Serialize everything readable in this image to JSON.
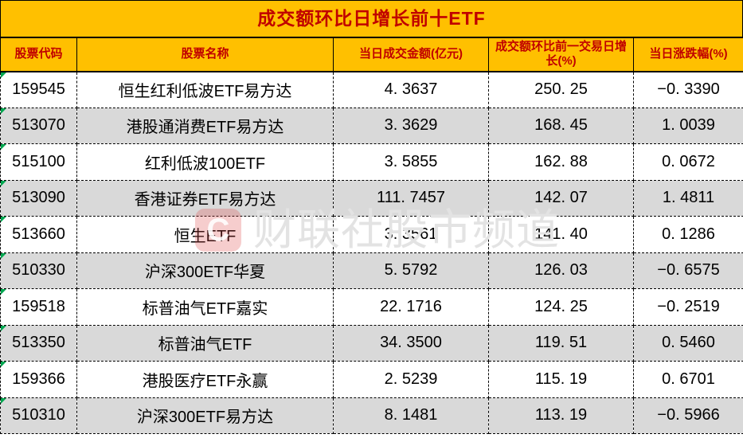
{
  "title": "成交额环比日增长前十ETF",
  "colors": {
    "header_bg": "#FFC000",
    "header_text": "#C00000",
    "row_bg": "#FFFFFF",
    "row_alt_bg": "#D9D9D9",
    "grid": "#000000",
    "cell_text": "#000000",
    "indicator_green": "#00A650"
  },
  "table": {
    "columns": [
      {
        "label": "股票代码"
      },
      {
        "label": "股票名称"
      },
      {
        "label": "当日成交金额(亿元)"
      },
      {
        "label": "成交额环比前一交易日增长(%)"
      },
      {
        "label": "当日涨跌幅(%)"
      }
    ],
    "rows": [
      [
        "159545",
        "恒生红利低波ETF易方达",
        "4. 3637",
        "250. 25",
        "−0. 3390"
      ],
      [
        "513070",
        "港股通消费ETF易方达",
        "3. 3629",
        "168. 45",
        "1. 0039"
      ],
      [
        "515100",
        "红利低波100ETF",
        "3. 5855",
        "162. 88",
        "0. 0672"
      ],
      [
        "513090",
        "香港证券ETF易方达",
        "111. 7457",
        "142. 07",
        "1. 4811"
      ],
      [
        "513660",
        "恒生ETF",
        "3. 3561",
        "141. 40",
        "0. 1286"
      ],
      [
        "510330",
        "沪深300ETF华夏",
        "5. 5792",
        "126. 03",
        "−0. 6575"
      ],
      [
        "159518",
        "标普油气ETF嘉实",
        "22. 1716",
        "124. 25",
        "−0. 2519"
      ],
      [
        "513350",
        "标普油气ETF",
        "34. 3500",
        "119. 51",
        "0. 5460"
      ],
      [
        "159366",
        "港股医疗ETF永赢",
        "2. 5239",
        "115. 19",
        "0. 6701"
      ],
      [
        "510310",
        "沪深300ETF易方达",
        "8. 1481",
        "113. 19",
        "−0. 5966"
      ]
    ]
  },
  "chart_data": {
    "type": "table",
    "title": "成交额环比日增长前十ETF",
    "columns": [
      "股票代码",
      "股票名称",
      "当日成交金额(亿元)",
      "成交额环比前一交易日增长(%)",
      "当日涨跌幅(%)"
    ],
    "rows": [
      [
        "159545",
        "恒生红利低波ETF易方达",
        4.3637,
        250.25,
        -0.339
      ],
      [
        "513070",
        "港股通消费ETF易方达",
        3.3629,
        168.45,
        1.0039
      ],
      [
        "515100",
        "红利低波100ETF",
        3.5855,
        162.88,
        0.0672
      ],
      [
        "513090",
        "香港证券ETF易方达",
        111.7457,
        142.07,
        1.4811
      ],
      [
        "513660",
        "恒生ETF",
        3.3561,
        141.4,
        0.1286
      ],
      [
        "510330",
        "沪深300ETF华夏",
        5.5792,
        126.03,
        -0.6575
      ],
      [
        "159518",
        "标普油气ETF嘉实",
        22.1716,
        124.25,
        -0.2519
      ],
      [
        "513350",
        "标普油气ETF",
        34.35,
        119.51,
        0.546
      ],
      [
        "159366",
        "港股医疗ETF永赢",
        2.5239,
        115.19,
        0.6701
      ],
      [
        "510310",
        "沪深300ETF易方达",
        8.1481,
        113.19,
        -0.5966
      ]
    ]
  },
  "watermark": {
    "logo_letter": "C",
    "text": "财联社股市频道"
  }
}
